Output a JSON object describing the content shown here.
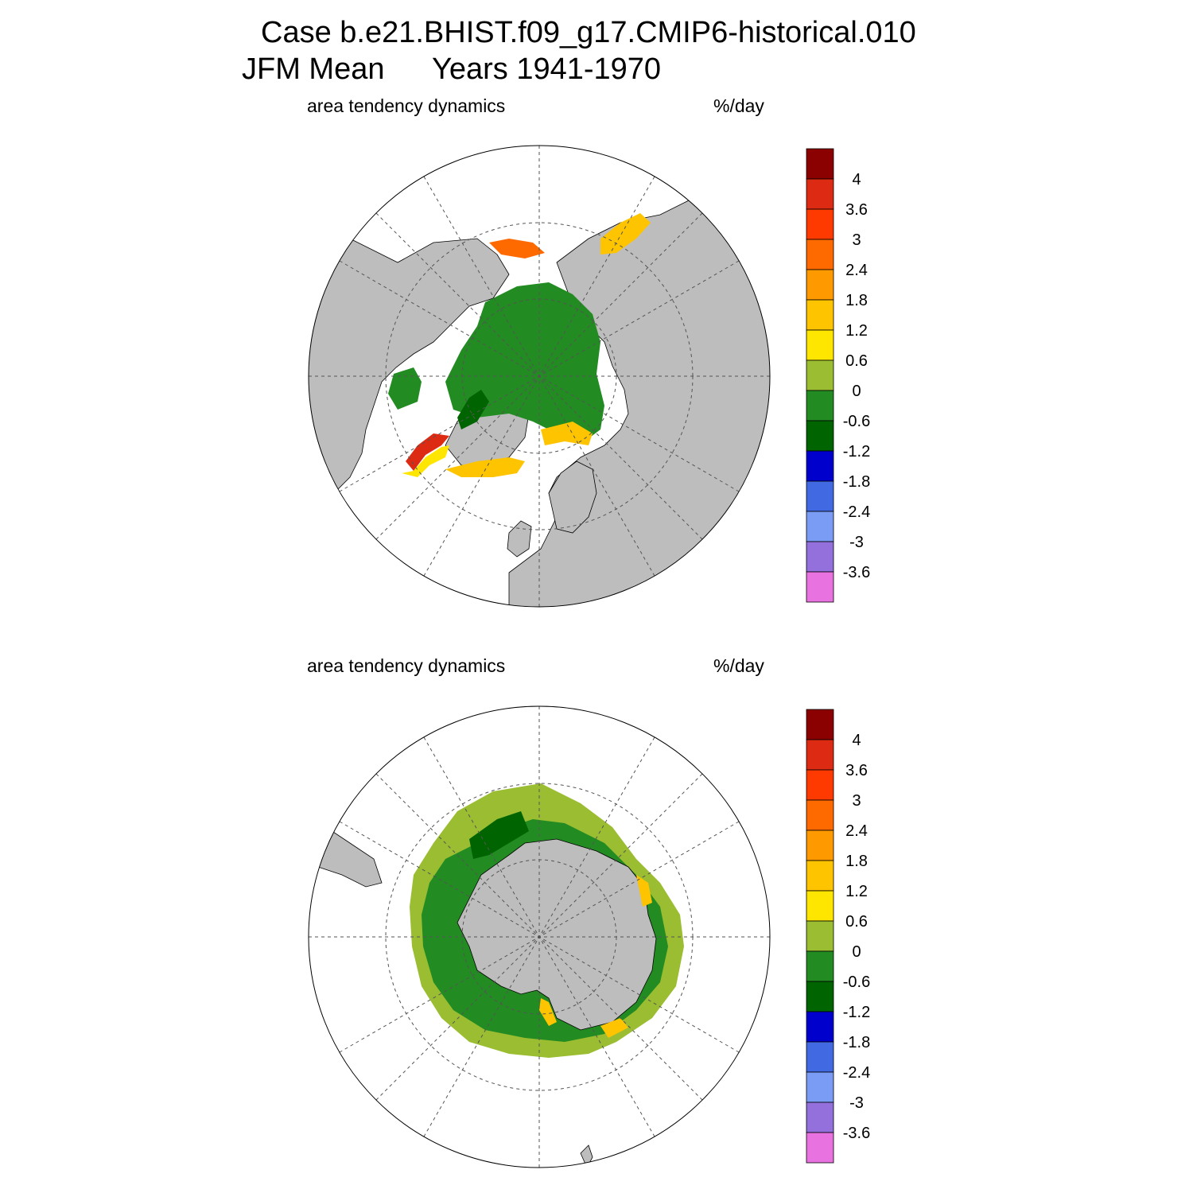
{
  "figure": {
    "title_line1": "Case b.e21.BHIST.f09_g17.CMIP6-historical.010",
    "title_season": "JFM Mean",
    "title_years": "Years 1941-1970"
  },
  "panels": [
    {
      "id": "north",
      "hemisphere": "Arctic",
      "left_label": "area tendency dynamics",
      "units": "%/day"
    },
    {
      "id": "south",
      "hemisphere": "Antarctic",
      "left_label": "area tendency dynamics",
      "units": "%/day"
    }
  ],
  "colorbar": {
    "labels": [
      "4",
      "3.6",
      "3",
      "2.4",
      "1.8",
      "1.2",
      "0.6",
      "0",
      "-0.6",
      "-1.2",
      "-1.8",
      "-2.4",
      "-3",
      "-3.6"
    ],
    "colors": [
      "#8b0000",
      "#dd2a12",
      "#ff3a00",
      "#ff6a00",
      "#ff9900",
      "#ffc400",
      "#ffe600",
      "#9abd31",
      "#228b22",
      "#006400",
      "#0000cd",
      "#4169e1",
      "#7b9cf5",
      "#9370db",
      "#e873e0"
    ]
  },
  "colors": {
    "land": "#bdbdbd",
    "ocean": "#ffffff",
    "grid": "#555555"
  }
}
